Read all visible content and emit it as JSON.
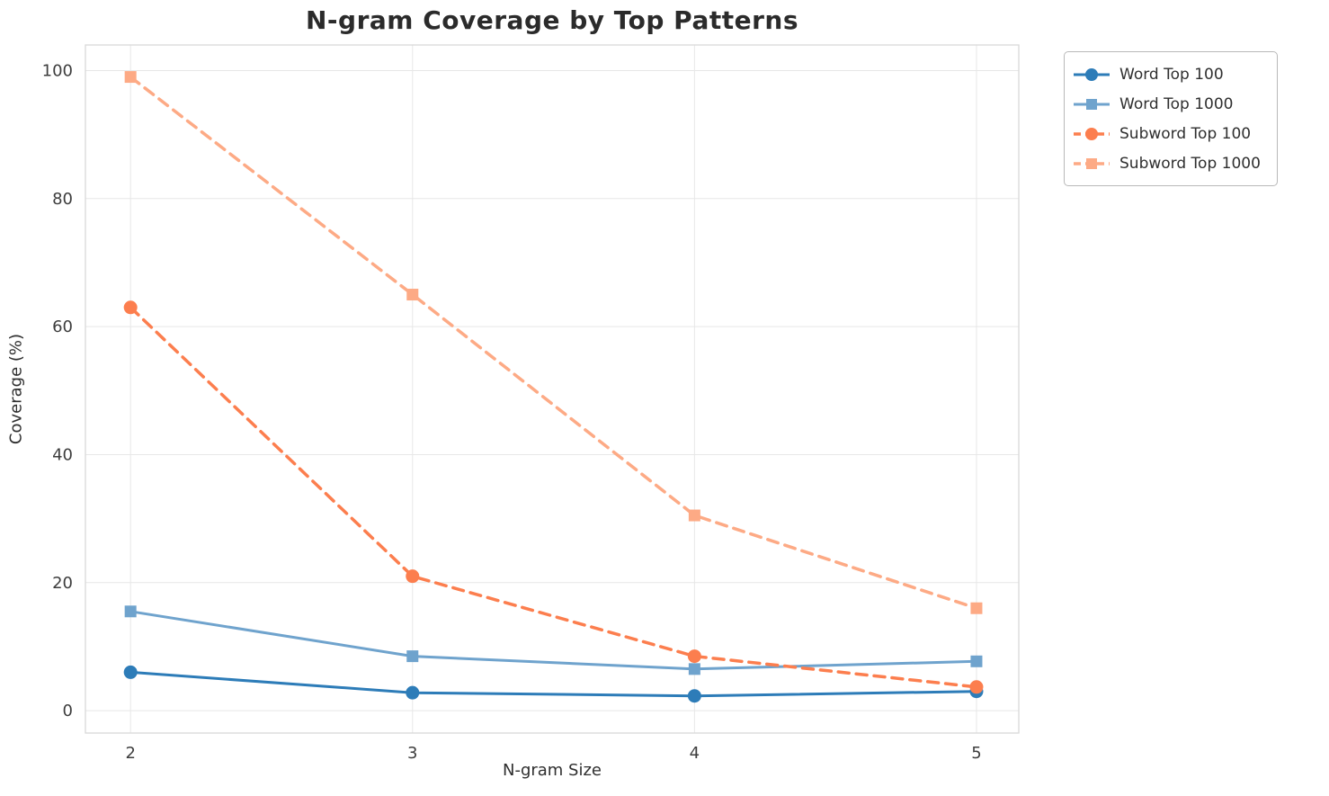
{
  "chart": {
    "title": "N-gram Coverage by Top Patterns",
    "xlabel": "N-gram Size",
    "ylabel": "Coverage (%)"
  },
  "chart_data": {
    "type": "line",
    "x": [
      2,
      3,
      4,
      5
    ],
    "xticks": [
      2,
      3,
      4,
      5
    ],
    "yticks": [
      0,
      20,
      40,
      60,
      80,
      100
    ],
    "xlim": [
      1.84,
      5.15
    ],
    "ylim": [
      -3.5,
      104
    ],
    "grid": true,
    "legend_position": "outside-top-right",
    "title": "N-gram Coverage by Top Patterns",
    "xlabel": "N-gram Size",
    "ylabel": "Coverage (%)",
    "series": [
      {
        "name": "Word Top 100",
        "values": [
          6.0,
          2.8,
          2.3,
          3.0
        ],
        "color": "#2d7cb8",
        "marker": "circle",
        "dash": "solid"
      },
      {
        "name": "Word Top 1000",
        "values": [
          15.5,
          8.5,
          6.5,
          7.7
        ],
        "color": "#6fa3cd",
        "marker": "square",
        "dash": "solid"
      },
      {
        "name": "Subword Top 100",
        "values": [
          63.0,
          21.0,
          8.5,
          3.7
        ],
        "color": "#fc7e4e",
        "marker": "circle",
        "dash": "dashed"
      },
      {
        "name": "Subword Top 1000",
        "values": [
          99.0,
          65.0,
          30.5,
          16.0
        ],
        "color": "#fdaa85",
        "marker": "square",
        "dash": "dashed"
      }
    ],
    "style": {
      "grid_color": "#e7e7e7",
      "spine_color": "#d9d9d9",
      "tick_label_color": "#3d3d3d",
      "background": "#ffffff"
    }
  }
}
